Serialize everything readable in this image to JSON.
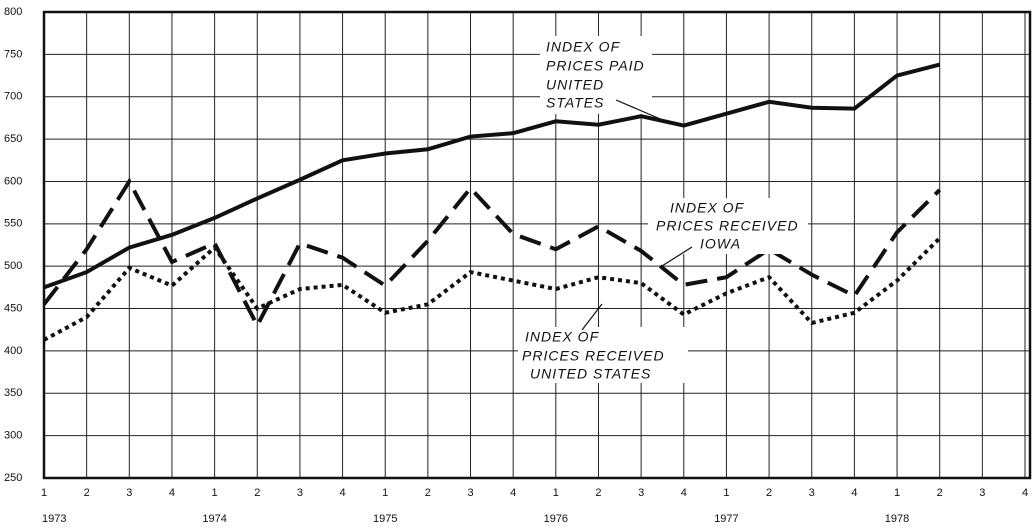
{
  "chart_data": {
    "type": "line",
    "categories": [
      "1",
      "2",
      "3",
      "4",
      "1",
      "2",
      "3",
      "4",
      "1",
      "2",
      "3",
      "4",
      "1",
      "2",
      "3",
      "4",
      "1",
      "2",
      "3",
      "4",
      "1",
      "2",
      "3",
      "4"
    ],
    "years": [
      "1973",
      "1974",
      "1975",
      "1976",
      "1977",
      "1978"
    ],
    "ylim": [
      250,
      800
    ],
    "yticks": [
      250,
      300,
      350,
      400,
      450,
      500,
      550,
      600,
      650,
      700,
      750,
      800
    ],
    "grid": true,
    "series": [
      {
        "color": "#111111",
        "dash": "solid",
        "values": [
          475,
          493,
          522,
          537,
          557,
          580,
          602,
          625,
          633,
          638,
          653,
          657,
          671,
          667,
          677,
          666,
          680,
          694,
          687,
          686,
          725,
          738,
          null,
          null
        ]
      },
      {
        "color": "#111111",
        "dash": "dashed",
        "values": [
          455,
          520,
          600,
          505,
          527,
          430,
          527,
          510,
          477,
          530,
          592,
          538,
          520,
          547,
          518,
          478,
          487,
          520,
          490,
          465,
          540,
          590,
          null,
          null
        ]
      },
      {
        "color": "#111111",
        "dash": "dotted",
        "values": [
          413,
          440,
          498,
          477,
          522,
          450,
          473,
          478,
          445,
          455,
          493,
          483,
          473,
          487,
          480,
          443,
          468,
          487,
          433,
          445,
          483,
          533,
          null,
          null
        ]
      }
    ],
    "annotations": [
      {
        "lines": [
          "INDEX OF",
          "PRICES PAID",
          "UNITED",
          "STATES"
        ]
      },
      {
        "lines": [
          "INDEX OF",
          "PRICES RECEIVED",
          "IOWA"
        ]
      },
      {
        "lines": [
          "INDEX OF",
          "PRICES RECEIVED",
          "UNITED STATES"
        ]
      }
    ]
  }
}
